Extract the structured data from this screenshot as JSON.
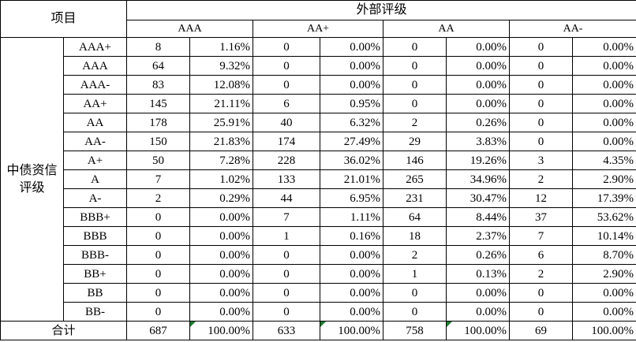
{
  "table": {
    "corner": "项目",
    "group_header": "外部评级",
    "groups": [
      "AAA",
      "AA+",
      "AA",
      "AA-"
    ],
    "row_group": "中债资信评级",
    "rows": [
      {
        "label": "AAA+",
        "cells": [
          8,
          "1.16%",
          0,
          "0.00%",
          0,
          "0.00%",
          0,
          "0.00%"
        ]
      },
      {
        "label": "AAA",
        "cells": [
          64,
          "9.32%",
          0,
          "0.00%",
          0,
          "0.00%",
          0,
          "0.00%"
        ]
      },
      {
        "label": "AAA-",
        "cells": [
          83,
          "12.08%",
          0,
          "0.00%",
          0,
          "0.00%",
          0,
          "0.00%"
        ]
      },
      {
        "label": "AA+",
        "cells": [
          145,
          "21.11%",
          6,
          "0.95%",
          0,
          "0.00%",
          0,
          "0.00%"
        ]
      },
      {
        "label": "AA",
        "cells": [
          178,
          "25.91%",
          40,
          "6.32%",
          2,
          "0.26%",
          0,
          "0.00%"
        ]
      },
      {
        "label": "AA-",
        "cells": [
          150,
          "21.83%",
          174,
          "27.49%",
          29,
          "3.83%",
          0,
          "0.00%"
        ]
      },
      {
        "label": "A+",
        "cells": [
          50,
          "7.28%",
          228,
          "36.02%",
          146,
          "19.26%",
          3,
          "4.35%"
        ]
      },
      {
        "label": "A",
        "cells": [
          7,
          "1.02%",
          133,
          "21.01%",
          265,
          "34.96%",
          2,
          "2.90%"
        ]
      },
      {
        "label": "A-",
        "cells": [
          2,
          "0.29%",
          44,
          "6.95%",
          231,
          "30.47%",
          12,
          "17.39%"
        ]
      },
      {
        "label": "BBB+",
        "cells": [
          0,
          "0.00%",
          7,
          "1.11%",
          64,
          "8.44%",
          37,
          "53.62%"
        ]
      },
      {
        "label": "BBB",
        "cells": [
          0,
          "0.00%",
          1,
          "0.16%",
          18,
          "2.37%",
          7,
          "10.14%"
        ]
      },
      {
        "label": "BBB-",
        "cells": [
          0,
          "0.00%",
          0,
          "0.00%",
          2,
          "0.26%",
          6,
          "8.70%"
        ]
      },
      {
        "label": "BB+",
        "cells": [
          0,
          "0.00%",
          0,
          "0.00%",
          1,
          "0.13%",
          2,
          "2.90%"
        ]
      },
      {
        "label": "BB",
        "cells": [
          0,
          "0.00%",
          0,
          "0.00%",
          0,
          "0.00%",
          0,
          "0.00%"
        ]
      },
      {
        "label": "BB-",
        "cells": [
          0,
          "0.00%",
          0,
          "0.00%",
          0,
          "0.00%",
          0,
          "0.00%"
        ]
      }
    ],
    "total": {
      "label": "合计",
      "cells": [
        687,
        "100.00%",
        633,
        "100.00%",
        758,
        "100.00%",
        69,
        "100.00%"
      ]
    }
  }
}
